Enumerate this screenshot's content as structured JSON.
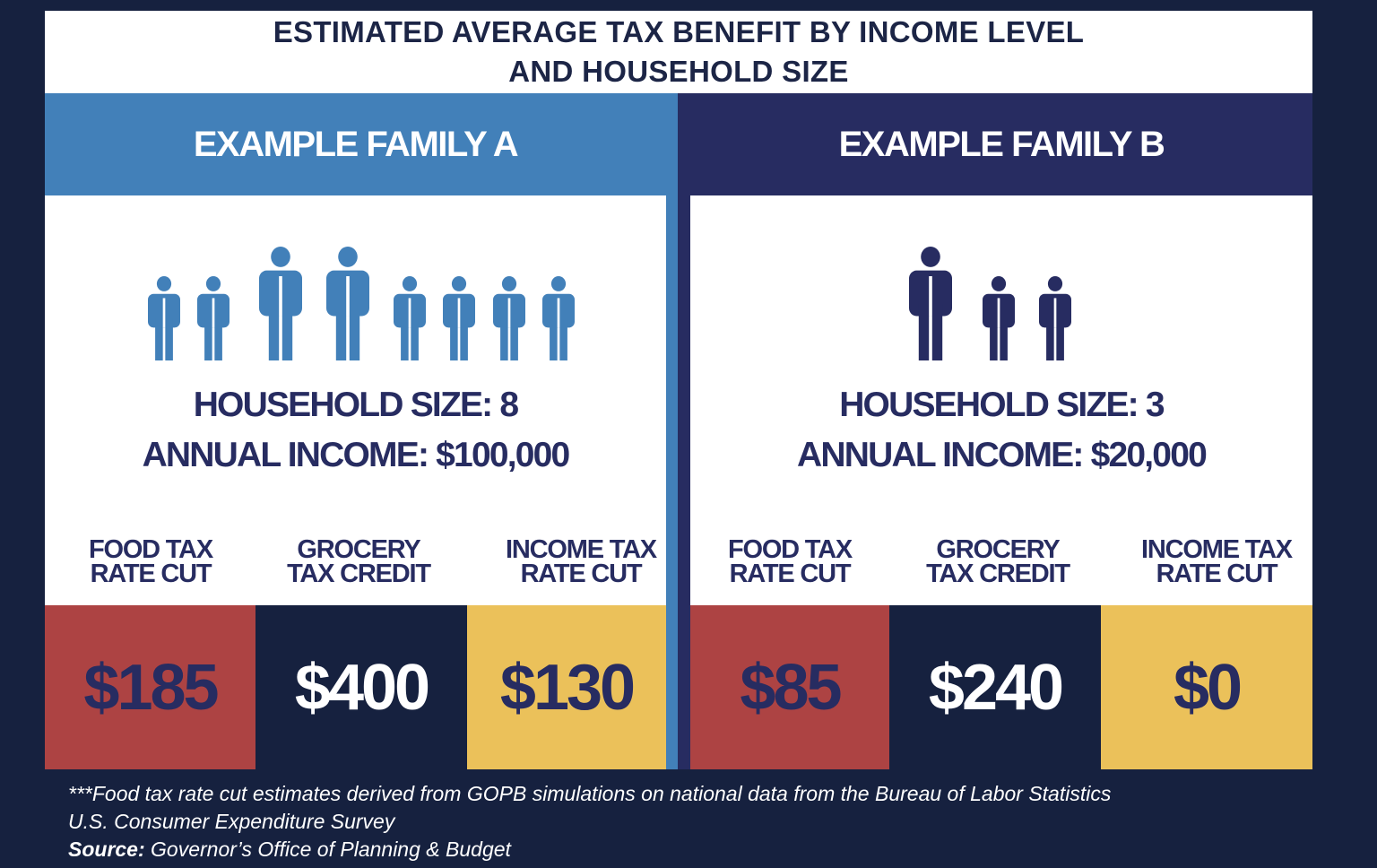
{
  "title": {
    "line1": "ESTIMATED AVERAGE TAX BENEFIT BY INCOME LEVEL",
    "line2": "AND HOUSEHOLD SIZE"
  },
  "colors": {
    "background": "#16213f",
    "family_a": "#4280b9",
    "family_b": "#272c61",
    "food_tax": "#ad4343",
    "grocery_credit": "#16213f",
    "income_tax": "#ebc15a"
  },
  "family_a": {
    "header": "EXAMPLE FAMILY A",
    "icon": "person-icon",
    "household_size": "HOUSEHOLD SIZE: 8",
    "annual_income": "ANNUAL INCOME: $100,000",
    "benefits": [
      {
        "label_line1": "FOOD TAX",
        "label_line2": "RATE CUT",
        "value": "$185"
      },
      {
        "label_line1": "GROCERY",
        "label_line2": "TAX CREDIT",
        "value": "$400"
      },
      {
        "label_line1": "INCOME TAX",
        "label_line2": "RATE CUT",
        "value": "$130"
      }
    ]
  },
  "family_b": {
    "header": "EXAMPLE FAMILY B",
    "icon": "person-icon",
    "household_size": "HOUSEHOLD SIZE: 3",
    "annual_income": "ANNUAL INCOME: $20,000",
    "benefits": [
      {
        "label_line1": "FOOD TAX",
        "label_line2": "RATE CUT",
        "value": "$85"
      },
      {
        "label_line1": "GROCERY",
        "label_line2": "TAX CREDIT",
        "value": "$240"
      },
      {
        "label_line1": "INCOME TAX",
        "label_line2": "RATE CUT",
        "value": "$0"
      }
    ]
  },
  "footnote": {
    "line1": "***Food tax rate cut estimates derived from GOPB simulations on national data from the Bureau of Labor Statistics",
    "line2": "U.S. Consumer Expenditure Survey",
    "source_label": "Source:",
    "source_text": " Governor’s Office of Planning & Budget"
  }
}
